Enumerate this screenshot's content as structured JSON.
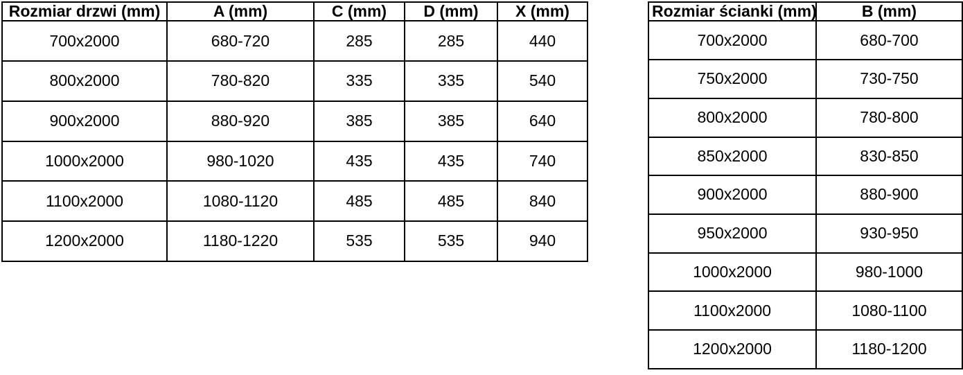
{
  "doors_table": {
    "headers": [
      "Rozmiar drzwi (mm)",
      "A (mm)",
      "C (mm)",
      "D (mm)",
      "X (mm)"
    ],
    "rows": [
      [
        "700x2000",
        "680-720",
        "285",
        "285",
        "440"
      ],
      [
        "800x2000",
        "780-820",
        "335",
        "335",
        "540"
      ],
      [
        "900x2000",
        "880-920",
        "385",
        "385",
        "640"
      ],
      [
        "1000x2000",
        "980-1020",
        "435",
        "435",
        "740"
      ],
      [
        "1100x2000",
        "1080-1120",
        "485",
        "485",
        "840"
      ],
      [
        "1200x2000",
        "1180-1220",
        "535",
        "535",
        "940"
      ]
    ]
  },
  "walls_table": {
    "headers": [
      "Rozmiar ścianki (mm)",
      "B (mm)"
    ],
    "rows": [
      [
        "700x2000",
        "680-700"
      ],
      [
        "750x2000",
        "730-750"
      ],
      [
        "800x2000",
        "780-800"
      ],
      [
        "850x2000",
        "830-850"
      ],
      [
        "900x2000",
        "880-900"
      ],
      [
        "950x2000",
        "930-950"
      ],
      [
        "1000x2000",
        "980-1000"
      ],
      [
        "1100x2000",
        "1080-1100"
      ],
      [
        "1200x2000",
        "1180-1200"
      ]
    ]
  },
  "colors": {
    "border": "#000000",
    "text": "#000000",
    "background": "#ffffff"
  }
}
